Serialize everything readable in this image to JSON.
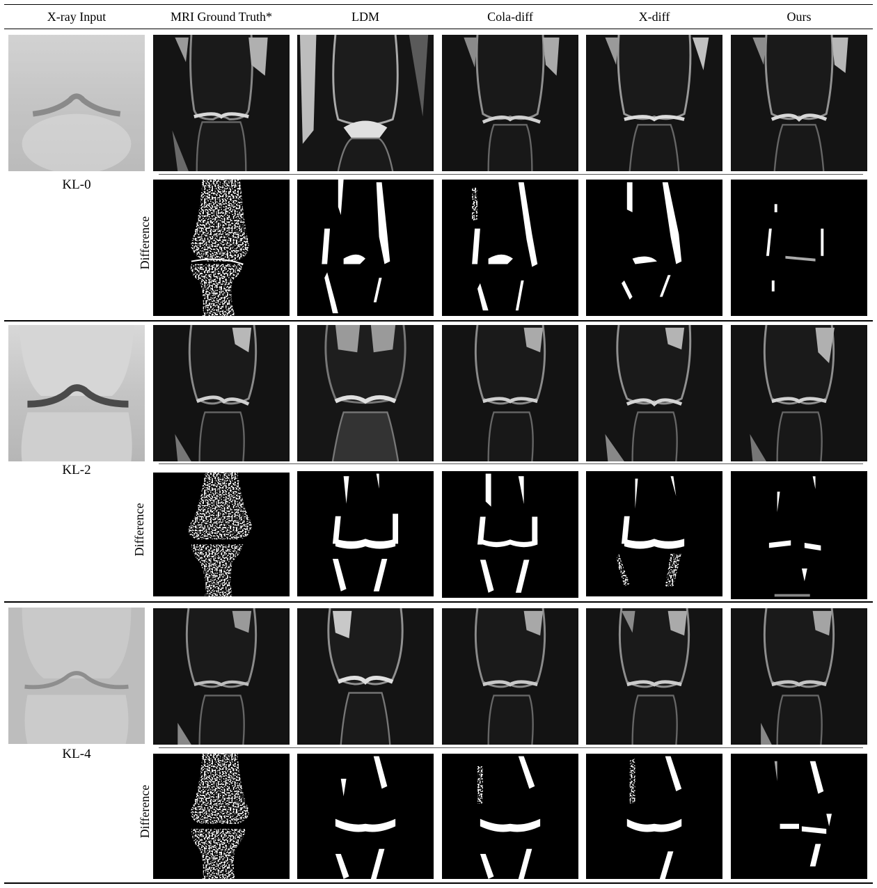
{
  "columns": [
    "X-ray Input",
    "MRI Ground Truth*",
    "LDM",
    "Cola-diff",
    "X-diff",
    "Ours"
  ],
  "difference_label": "Difference",
  "rows": [
    {
      "grade": "KL-0"
    },
    {
      "grade": "KL-2"
    },
    {
      "grade": "KL-4"
    }
  ]
}
